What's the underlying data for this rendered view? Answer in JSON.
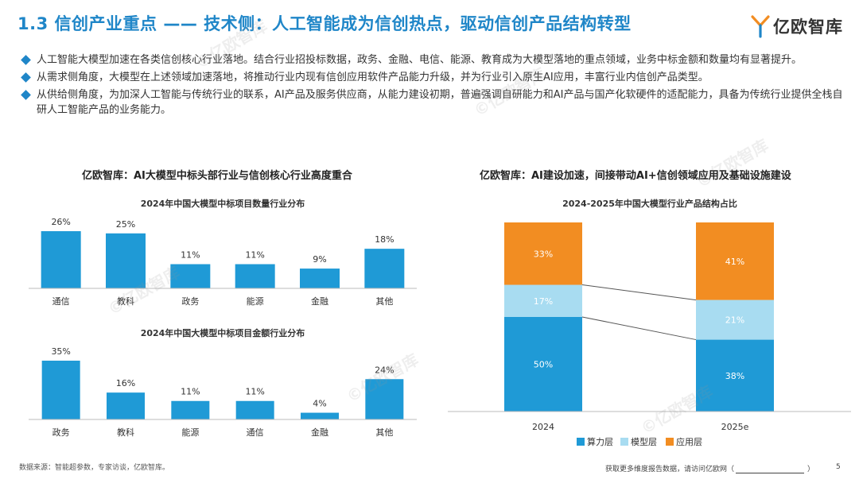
{
  "header": {
    "title": "1.3 信创产业重点 —— 技术侧：人工智能成为信创热点，驱动信创产品结构转型",
    "logo_text": "亿欧智库"
  },
  "bullets": [
    "人工智能大模型加速在各类信创核心行业落地。结合行业招投标数据，政务、金融、电信、能源、教育成为大模型落地的重点领域，业务中标金额和数量均有显著提升。",
    "从需求侧角度，大模型在上述领域加速落地，将推动行业内现有信创应用软件产品能力升级，并为行业引入原生AI应用，丰富行业内信创产品类型。",
    "从供给侧角度，为加深人工智能与传统行业的联系，AI产品及服务供应商，从能力建设初期，普遍强调自研能力和AI产品与国产化软硬件的适配能力，具备为传统行业提供全栈自研人工智能产品的业务能力。"
  ],
  "left_panel": {
    "title": "亿欧智库：AI大模型中标头部行业与信创核心行业高度重合"
  },
  "right_panel": {
    "title": "亿欧智库：AI建设加速，间接带动AI+信创领域应用及基础设施建设"
  },
  "watermark_text": "©亿欧智库",
  "colors": {
    "title_blue": "#1f86c8",
    "bar_blue": "#1f9ad6",
    "compute": "#1f9ad6",
    "model": "#a8dcf1",
    "application": "#f28d22"
  },
  "chart_data": [
    {
      "type": "bar",
      "title": "2024年中国大模型中标项目数量行业分布",
      "categories": [
        "通信",
        "教科",
        "政务",
        "能源",
        "金融",
        "其他"
      ],
      "values": [
        26,
        25,
        11,
        11,
        9,
        18
      ],
      "value_labels": [
        "26%",
        "25%",
        "11%",
        "11%",
        "9%",
        "18%"
      ],
      "unit": "%",
      "ylim": [
        0,
        26
      ],
      "grid": false
    },
    {
      "type": "bar",
      "title": "2024年中国大模型中标项目金额行业分布",
      "categories": [
        "政务",
        "教科",
        "能源",
        "通信",
        "金融",
        "其他"
      ],
      "values": [
        35,
        16,
        11,
        11,
        4,
        24
      ],
      "value_labels": [
        "35%",
        "16%",
        "11%",
        "11%",
        "4%",
        "24%"
      ],
      "unit": "%",
      "ylim": [
        0,
        35
      ],
      "grid": false
    },
    {
      "type": "bar",
      "stacked": true,
      "title": "2024-2025年中国大模型行业产品结构占比",
      "categories": [
        "2024",
        "2025e"
      ],
      "series": [
        {
          "name": "算力层",
          "values": [
            50,
            38
          ],
          "labels": [
            "50%",
            "38%"
          ],
          "color": "#1f9ad6"
        },
        {
          "name": "模型层",
          "values": [
            17,
            21
          ],
          "labels": [
            "17%",
            "21%"
          ],
          "color": "#a8dcf1"
        },
        {
          "name": "应用层",
          "values": [
            33,
            41
          ],
          "labels": [
            "33%",
            "41%"
          ],
          "color": "#f28d22"
        }
      ],
      "ylim": [
        0,
        100
      ],
      "legend": "bottom",
      "grid": false
    }
  ],
  "footer": {
    "source": "数据来源：智能超参数，专家访谈，亿欧智库。",
    "note_prefix": "获取更多维度报告数据，请访问亿欧网（",
    "note_suffix": "）",
    "page": "5"
  }
}
